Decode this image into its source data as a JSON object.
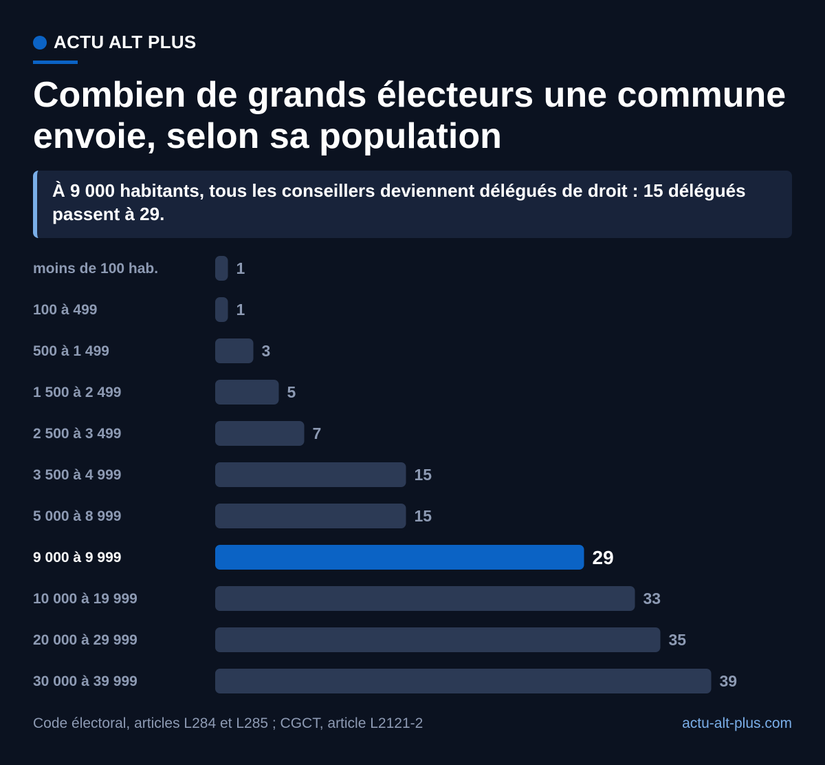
{
  "brand": {
    "name": "ACTU ALT PLUS"
  },
  "title": "Combien de grands électeurs une commune envoie, selon sa population",
  "callout": "À 9 000 habitants, tous les conseillers deviennent délégués de droit : 15 délégués passent à 29.",
  "colors": {
    "background": "#0b1220",
    "bar": "#2c3a55",
    "highlight": "#0b63c5",
    "label": "#8d9ab3",
    "accent": "#7aaee8"
  },
  "chart_data": {
    "type": "bar",
    "orientation": "horizontal",
    "categories": [
      "moins de 100 hab.",
      "100 à 499",
      "500 à 1 499",
      "1 500 à 2 499",
      "2 500 à 3 499",
      "3 500 à 4 999",
      "5 000 à 8 999",
      "9 000 à 9 999",
      "10 000 à 19 999",
      "20 000 à 29 999",
      "30 000 à 39 999"
    ],
    "values": [
      1,
      1,
      3,
      5,
      7,
      15,
      15,
      29,
      33,
      35,
      39
    ],
    "highlight_index": 7,
    "xlim": [
      0,
      39
    ],
    "grid": false,
    "legend": "none"
  },
  "footer": {
    "source": "Code électoral, articles L284 et L285 ; CGCT, article L2121-2",
    "site": "actu-alt-plus.com"
  }
}
